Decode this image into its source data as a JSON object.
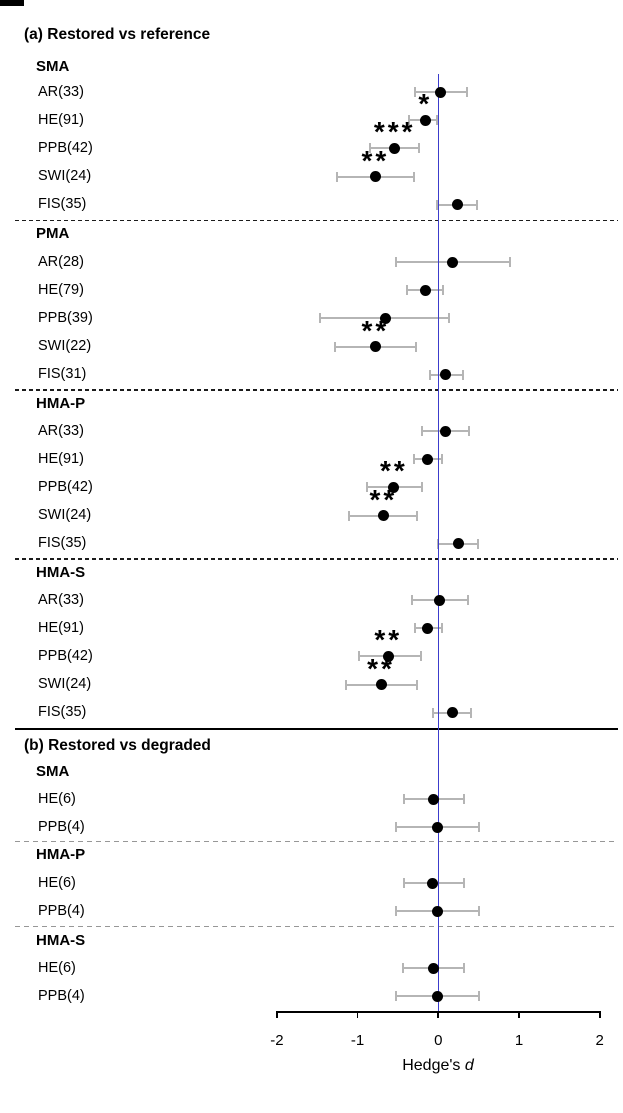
{
  "colors": {
    "background": "#ffffff",
    "zero_line": "#3c3ccc",
    "error_bar": "#b5b5b5",
    "point": "#000000",
    "separator_panel_a": "#1c1c1c",
    "separator_panel_b": "#979797",
    "axis": "#000000"
  },
  "chart_data": {
    "type": "forest",
    "xlabel": "Hedge's d",
    "axis_label_prefix": "Hedge's",
    "axis_label_var": "d",
    "xlim": [
      -2,
      2
    ],
    "ticks": [
      -2,
      -1,
      0,
      1,
      2
    ],
    "tick_labels": [
      "-2",
      "-1",
      "0",
      "1",
      "2"
    ],
    "zero_reference_line": 0,
    "grid": false,
    "panels": [
      {
        "title": "(a) Restored vs reference",
        "groups": [
          {
            "name": "SMA",
            "rows": [
              {
                "label": "AR(33)",
                "d": 0.03,
                "lo": -0.29,
                "hi": 0.36,
                "sig": ""
              },
              {
                "label": "HE(91)",
                "d": -0.16,
                "lo": -0.36,
                "hi": -0.01,
                "sig": "*"
              },
              {
                "label": "PPB(42)",
                "d": -0.54,
                "lo": -0.85,
                "hi": -0.24,
                "sig": "***"
              },
              {
                "label": "SWI(24)",
                "d": -0.78,
                "lo": -1.25,
                "hi": -0.3,
                "sig": "**"
              },
              {
                "label": "FIS(35)",
                "d": 0.24,
                "lo": -0.02,
                "hi": 0.48,
                "sig": ""
              }
            ]
          },
          {
            "name": "PMA",
            "rows": [
              {
                "label": "AR(28)",
                "d": 0.17,
                "lo": -0.53,
                "hi": 0.89,
                "sig": ""
              },
              {
                "label": "HE(79)",
                "d": -0.16,
                "lo": -0.39,
                "hi": 0.06,
                "sig": ""
              },
              {
                "label": "PPB(39)",
                "d": -0.66,
                "lo": -1.46,
                "hi": 0.13,
                "sig": ""
              },
              {
                "label": "SWI(22)",
                "d": -0.78,
                "lo": -1.28,
                "hi": -0.28,
                "sig": "**"
              },
              {
                "label": "FIS(31)",
                "d": 0.09,
                "lo": -0.1,
                "hi": 0.31,
                "sig": ""
              }
            ]
          },
          {
            "name": "HMA-P",
            "rows": [
              {
                "label": "AR(33)",
                "d": 0.09,
                "lo": -0.2,
                "hi": 0.38,
                "sig": ""
              },
              {
                "label": "HE(91)",
                "d": -0.14,
                "lo": -0.3,
                "hi": 0.05,
                "sig": ""
              },
              {
                "label": "PPB(42)",
                "d": -0.55,
                "lo": -0.88,
                "hi": -0.2,
                "sig": "**"
              },
              {
                "label": "SWI(24)",
                "d": -0.68,
                "lo": -1.11,
                "hi": -0.26,
                "sig": "**"
              },
              {
                "label": "FIS(35)",
                "d": 0.25,
                "lo": 0.0,
                "hi": 0.49,
                "sig": ""
              }
            ]
          },
          {
            "name": "HMA-S",
            "rows": [
              {
                "label": "AR(33)",
                "d": 0.01,
                "lo": -0.32,
                "hi": 0.37,
                "sig": ""
              },
              {
                "label": "HE(91)",
                "d": -0.14,
                "lo": -0.29,
                "hi": 0.05,
                "sig": ""
              },
              {
                "label": "PPB(42)",
                "d": -0.62,
                "lo": -0.98,
                "hi": -0.22,
                "sig": "**"
              },
              {
                "label": "SWI(24)",
                "d": -0.71,
                "lo": -1.14,
                "hi": -0.26,
                "sig": "**"
              },
              {
                "label": "FIS(35)",
                "d": 0.17,
                "lo": -0.06,
                "hi": 0.41,
                "sig": ""
              }
            ]
          }
        ]
      },
      {
        "title": "(b) Restored vs degraded",
        "groups": [
          {
            "name": "SMA",
            "rows": [
              {
                "label": "HE(6)",
                "d": -0.06,
                "lo": -0.43,
                "hi": 0.32,
                "sig": ""
              },
              {
                "label": "PPB(4)",
                "d": -0.01,
                "lo": -0.52,
                "hi": 0.51,
                "sig": ""
              }
            ]
          },
          {
            "name": "HMA-P",
            "rows": [
              {
                "label": "HE(6)",
                "d": -0.07,
                "lo": -0.43,
                "hi": 0.32,
                "sig": ""
              },
              {
                "label": "PPB(4)",
                "d": -0.01,
                "lo": -0.52,
                "hi": 0.51,
                "sig": ""
              }
            ]
          },
          {
            "name": "HMA-S",
            "rows": [
              {
                "label": "HE(6)",
                "d": -0.06,
                "lo": -0.44,
                "hi": 0.32,
                "sig": ""
              },
              {
                "label": "PPB(4)",
                "d": -0.01,
                "lo": -0.52,
                "hi": 0.51,
                "sig": ""
              }
            ]
          }
        ]
      }
    ]
  }
}
